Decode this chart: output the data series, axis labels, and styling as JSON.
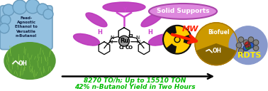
{
  "background_color": "#ffffff",
  "text_bottom_line1": "8270 TO/h; Up to 15510 TON",
  "text_bottom_line2": "42% n-Butanol Yield in Two Hours",
  "text_bottom_color": "#00bb00",
  "solid_supports_text": "Solid Supports",
  "solid_supports_fill": "#dd88dd",
  "solid_supports_edge": "#aa44aa",
  "feed_agnostic_text": "Feed-\nAgnostic\nEthanol to\nVersatile\nn-Butanol",
  "cloud_fill": "#88bbdd",
  "cloud_edge": "#6699bb",
  "grass_dark": "#336622",
  "grass_mid": "#559933",
  "grass_light": "#88cc44",
  "ethanol_color": "#000000",
  "pincer_color": "#cc44cc",
  "pincer_wing_color": "#bb33bb",
  "ru_fill": "#999999",
  "nuclear_yellow": "#ffcc00",
  "nuclear_black": "#111111",
  "mw_text": "MW",
  "mw_color": "#ff2200",
  "biofuel_text": "Biofuel",
  "biofuel_gold": "#cc9900",
  "biofuel_dark": "#886600",
  "rdts_fill": "#8899cc",
  "rdts_text": "RDTS",
  "rdts_text_color": "#ffee00",
  "arrow_bottom_color": "#000000",
  "atom_grey": "#aaaaaa",
  "atom_blue": "#2255cc",
  "atom_green": "#228833",
  "atom_red": "#cc2222"
}
